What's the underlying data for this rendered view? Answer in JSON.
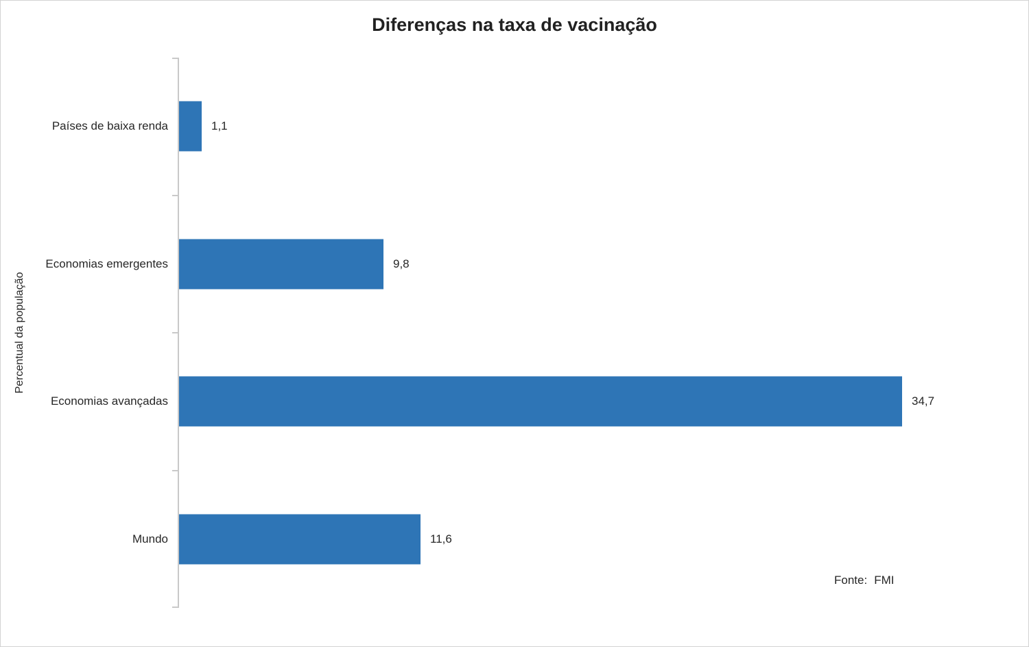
{
  "title": "Diferenças na taxa de vacinação",
  "source": {
    "label": "Fonte:",
    "value": "FMI"
  },
  "chart_data": {
    "type": "bar",
    "orientation": "horizontal",
    "title": "Diferenças na taxa de vacinação",
    "categories": [
      "Países de baixa renda",
      "Economias emergentes",
      "Economias avançadas",
      "Mundo"
    ],
    "values": [
      1.1,
      9.8,
      34.7,
      11.6
    ],
    "value_labels": [
      "1,1",
      "9,8",
      "34,7",
      "11,6"
    ],
    "xlabel": "",
    "ylabel": "Percentual da população",
    "xlim": [
      0,
      38.9
    ],
    "grid": false,
    "legend": false,
    "data_labels": true,
    "source": "Fonte: FMI"
  },
  "colors": {
    "bar": "#2e75b6",
    "axis": "#c9c9c9",
    "text": "#262626",
    "frame_border": "#d2d2d2"
  }
}
